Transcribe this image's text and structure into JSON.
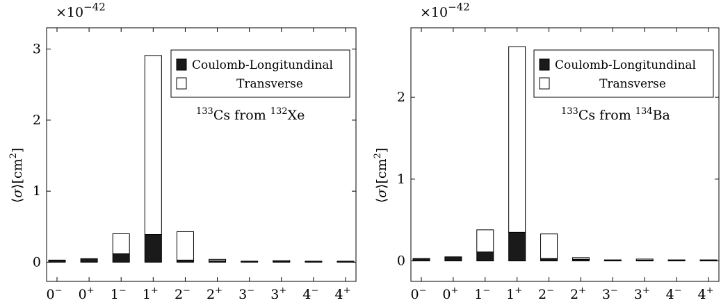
{
  "chart_data": [
    {
      "type": "bar",
      "stacked": true,
      "categories": [
        "0−",
        "0+",
        "1−",
        "1+",
        "2−",
        "2+",
        "3−",
        "3+",
        "4−",
        "4+"
      ],
      "category_tex": [
        {
          "base": "0",
          "sup": "−"
        },
        {
          "base": "0",
          "sup": "+"
        },
        {
          "base": "1",
          "sup": "−"
        },
        {
          "base": "1",
          "sup": "+"
        },
        {
          "base": "2",
          "sup": "−"
        },
        {
          "base": "2",
          "sup": "+"
        },
        {
          "base": "3",
          "sup": "−"
        },
        {
          "base": "3",
          "sup": "+"
        },
        {
          "base": "4",
          "sup": "−"
        },
        {
          "base": "4",
          "sup": "+"
        }
      ],
      "series": [
        {
          "name": "Coulomb-Longitundinal",
          "color": "#1a1a1a",
          "values": [
            0.03,
            0.05,
            0.12,
            0.39,
            0.03,
            0.02,
            0.005,
            0.01,
            0.005,
            0.005
          ]
        },
        {
          "name": "Transverse",
          "color": "#ffffff",
          "values": [
            0.0,
            0.0,
            0.28,
            2.52,
            0.4,
            0.02,
            0.0,
            0.005,
            0.0,
            0.0
          ]
        }
      ],
      "ylim": [
        -0.27,
        3.3
      ],
      "yticks": [
        0,
        1,
        2,
        3
      ],
      "ylabel": {
        "open": "⟨",
        "sym": "σ",
        "close": "⟩[cm",
        "sup": "2",
        "end": "]"
      },
      "scale_note": {
        "base": "×10",
        "exp": "−42"
      },
      "annotation": {
        "iso1": "133",
        "t1": "Cs from ",
        "iso2": "132",
        "t2": "Xe"
      },
      "legend_position": "top-right",
      "grid": false
    },
    {
      "type": "bar",
      "stacked": true,
      "categories": [
        "0−",
        "0+",
        "1−",
        "1+",
        "2−",
        "2+",
        "3−",
        "3+",
        "4−",
        "4+"
      ],
      "category_tex": [
        {
          "base": "0",
          "sup": "−"
        },
        {
          "base": "0",
          "sup": "+"
        },
        {
          "base": "1",
          "sup": "−"
        },
        {
          "base": "1",
          "sup": "+"
        },
        {
          "base": "2",
          "sup": "−"
        },
        {
          "base": "2",
          "sup": "+"
        },
        {
          "base": "3",
          "sup": "−"
        },
        {
          "base": "3",
          "sup": "+"
        },
        {
          "base": "4",
          "sup": "−"
        },
        {
          "base": "4",
          "sup": "+"
        }
      ],
      "series": [
        {
          "name": "Coulomb-Longitundinal",
          "color": "#1a1a1a",
          "values": [
            0.03,
            0.05,
            0.11,
            0.35,
            0.03,
            0.02,
            0.005,
            0.01,
            0.005,
            0.005
          ]
        },
        {
          "name": "Transverse",
          "color": "#ffffff",
          "values": [
            0.0,
            0.0,
            0.27,
            2.27,
            0.3,
            0.02,
            0.0,
            0.005,
            0.0,
            0.0
          ]
        }
      ],
      "ylim": [
        -0.25,
        2.85
      ],
      "yticks": [
        0,
        1,
        2
      ],
      "ylabel": {
        "open": "⟨",
        "sym": "σ",
        "close": "⟩[cm",
        "sup": "2",
        "end": "]"
      },
      "scale_note": {
        "base": "×10",
        "exp": "−42"
      },
      "annotation": {
        "iso1": "133",
        "t1": "Cs from ",
        "iso2": "134",
        "t2": "Ba"
      },
      "legend_position": "top-right",
      "grid": false
    }
  ]
}
